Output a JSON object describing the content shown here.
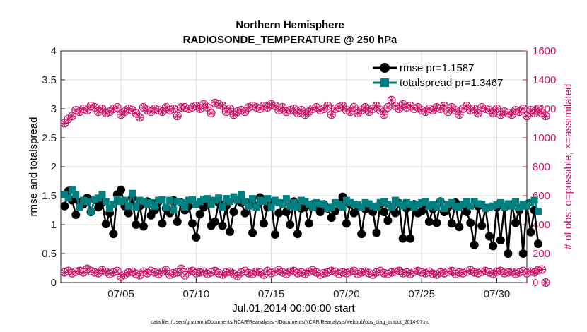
{
  "colors": {
    "rmse": "#000000",
    "spread": "#008080",
    "obs": "#cc1466",
    "grid": "#dddddd",
    "axis": "#222222"
  },
  "chart_data": {
    "type": "line",
    "title": "Northern Hemisphere",
    "subtitle": "RADIOSONDE_TEMPERATURE @ 250 hPa",
    "xlabel": "Jul.01,2014 00:00:00 start",
    "ylabel_left": "rmse and totalspread",
    "ylabel_right": "# of obs: o=possible; ×=assimilated",
    "xlim": [
      1,
      32
    ],
    "ylim_left": [
      0,
      4
    ],
    "ylim_right": [
      0,
      1600
    ],
    "xticks": [
      5,
      10,
      15,
      20,
      25,
      30
    ],
    "xtick_labels": [
      "07/05",
      "07/10",
      "07/15",
      "07/20",
      "07/25",
      "07/30"
    ],
    "yticks_left": [
      0,
      0.5,
      1,
      1.5,
      2,
      2.5,
      3,
      3.5,
      4
    ],
    "ytick_labels_left": [
      "0",
      "0.5",
      "1",
      "1.5",
      "2",
      "2.5",
      "3",
      "3.5",
      "4"
    ],
    "yticks_right": [
      0,
      200,
      400,
      600,
      800,
      1000,
      1200,
      1400,
      1600
    ],
    "ytick_labels_right": [
      "0",
      "200",
      "400",
      "600",
      "800",
      "1000",
      "1200",
      "1400",
      "1600"
    ],
    "legend": {
      "rmse": "rmse pr=1.1587",
      "spread": "totalspread pr=1.3467"
    },
    "footnote": "data file: /Users/gharamti/Documents/NCAR/Reanalysis/~/Documents/NCAR/Reanalysis/webpub/obs_diag_output_2014-07.nc",
    "x_start": 1.25,
    "x_step": 0.25,
    "series": [
      {
        "name": "rmse",
        "axis": "left",
        "values": [
          1.32,
          1.58,
          1.42,
          1.17,
          1.38,
          1.35,
          1.46,
          1.22,
          1.43,
          1.3,
          1.38,
          1.01,
          1.2,
          0.84,
          1.52,
          1.6,
          1.32,
          1.2,
          1.46,
          1.0,
          1.32,
          0.97,
          1.4,
          1.16,
          1.25,
          1.4,
          1.02,
          1.28,
          1.2,
          1.42,
          1.05,
          1.38,
          1.25,
          1.32,
          1.02,
          0.78,
          1.18,
          1.3,
          1.43,
          0.98,
          1.05,
          1.38,
          0.98,
          1.32,
          0.88,
          1.22,
          1.42,
          1.38,
          1.2,
          1.37,
          0.86,
          1.32,
          1.47,
          1.02,
          1.3,
          1.38,
          0.83,
          1.2,
          1.36,
          1.22,
          1.0,
          1.4,
          0.84,
          1.28,
          1.3,
          1.02,
          1.35,
          1.3,
          1.22,
          1.35,
          1.28,
          1.12,
          1.23,
          1.37,
          1.48,
          1.02,
          1.35,
          1.2,
          1.32,
          0.84,
          1.27,
          1.33,
          1.22,
          0.86,
          1.35,
          1.22,
          1.07,
          1.3,
          1.2,
          1.37,
          0.76,
          1.28,
          0.76,
          1.35,
          1.2,
          1.23,
          1.35,
          1.05,
          1.27,
          1.03,
          1.4,
          1.22,
          1.3,
          1.02,
          1.38,
          0.96,
          1.3,
          1.22,
          1.03,
          0.65,
          1.32,
          0.98,
          1.28,
          0.8,
          0.63,
          1.3,
          0.73,
          1.3,
          0.5,
          1.35,
          1.03,
          1.25,
          0.5,
          1.35,
          0.87,
          1.25,
          0.67
        ]
      },
      {
        "name": "totalspread",
        "axis": "left",
        "values": [
          1.52,
          1.46,
          1.6,
          1.52,
          1.3,
          1.42,
          1.4,
          1.22,
          1.44,
          1.46,
          1.52,
          1.4,
          1.28,
          1.35,
          1.44,
          1.4,
          1.42,
          1.32,
          1.54,
          1.3,
          1.42,
          1.4,
          1.35,
          1.38,
          1.32,
          1.42,
          1.43,
          1.3,
          1.42,
          1.25,
          1.4,
          1.38,
          1.3,
          1.42,
          1.43,
          1.35,
          1.4,
          1.44,
          1.45,
          1.35,
          1.42,
          1.46,
          1.3,
          1.45,
          1.4,
          1.48,
          1.42,
          1.52,
          1.4,
          1.32,
          1.45,
          1.3,
          1.42,
          1.4,
          1.45,
          1.3,
          1.42,
          1.38,
          1.35,
          1.45,
          1.32,
          1.38,
          1.3,
          1.42,
          1.4,
          1.35,
          1.3,
          1.38,
          1.36,
          1.35,
          1.28,
          1.3,
          1.38,
          1.35,
          1.3,
          1.42,
          1.38,
          1.35,
          1.34,
          1.3,
          1.38,
          1.36,
          1.32,
          1.3,
          1.38,
          1.4,
          1.35,
          1.3,
          1.42,
          1.37,
          1.32,
          1.38,
          1.35,
          1.3,
          1.35,
          1.38,
          1.4,
          1.32,
          1.35,
          1.3,
          1.4,
          1.28,
          1.35,
          1.38,
          1.32,
          1.3,
          1.35,
          1.4,
          1.32,
          1.4,
          1.36,
          1.35,
          1.28,
          1.3,
          1.32,
          1.34,
          1.38,
          1.3,
          1.36,
          1.32,
          1.4,
          1.3,
          1.35,
          1.32,
          1.38,
          1.42,
          1.23
        ]
      },
      {
        "name": "obs_possible",
        "axis": "right",
        "values": [
          1100,
          1130,
          1150,
          1190,
          1180,
          1200,
          1190,
          1220,
          1210,
          1180,
          1200,
          1170,
          1180,
          1200,
          1210,
          1160,
          1180,
          1200,
          1190,
          1170,
          1140,
          1210,
          1190,
          1180,
          1200,
          1190,
          1180,
          1210,
          1190,
          1200,
          1150,
          1210,
          1210,
          1200,
          1210,
          1220,
          1200,
          1230,
          1210,
          1170,
          1240,
          1230,
          1220,
          1180,
          1200,
          1160,
          1180,
          1190,
          1180,
          1210,
          1220,
          1210,
          1200,
          1220,
          1210,
          1230,
          1220,
          1190,
          1210,
          1180,
          1190,
          1200,
          1170,
          1190,
          1160,
          1180,
          1200,
          1210,
          1190,
          1200,
          1220,
          1160,
          1200,
          1210,
          1220,
          1190,
          1180,
          1210,
          1170,
          1190,
          1210,
          1180,
          1200,
          1220,
          1190,
          1160,
          1210,
          1260,
          1220,
          1200,
          1230,
          1210,
          1220,
          1200,
          1210,
          1190,
          1180,
          1200,
          1190,
          1210,
          1200,
          1220,
          1180,
          1210,
          1190,
          1160,
          1200,
          1220,
          1190,
          1200,
          1170,
          1210,
          1200,
          1190,
          1170,
          1200,
          1160,
          1180,
          1170,
          1160,
          1190,
          1180,
          1200,
          1150,
          1190,
          1170,
          1200,
          1170,
          1150
        ]
      },
      {
        "name": "obs_assimilated",
        "axis": "right",
        "values": [
          1100,
          1130,
          1150,
          1190,
          1180,
          1200,
          1190,
          1220,
          1210,
          1180,
          1200,
          1170,
          1180,
          1200,
          1210,
          1160,
          1180,
          1200,
          1190,
          1170,
          1140,
          1210,
          1190,
          1180,
          1200,
          1190,
          1180,
          1210,
          1190,
          1200,
          1150,
          1210,
          1210,
          1200,
          1210,
          1220,
          1200,
          1230,
          1210,
          1170,
          1240,
          1230,
          1220,
          1180,
          1200,
          1160,
          1180,
          1190,
          1180,
          1210,
          1220,
          1210,
          1200,
          1220,
          1210,
          1230,
          1220,
          1190,
          1210,
          1180,
          1190,
          1200,
          1170,
          1190,
          1160,
          1180,
          1200,
          1210,
          1190,
          1200,
          1220,
          1160,
          1200,
          1210,
          1220,
          1190,
          1180,
          1210,
          1170,
          1190,
          1210,
          1180,
          1200,
          1220,
          1190,
          1160,
          1210,
          1260,
          1220,
          1200,
          1230,
          1210,
          1220,
          1200,
          1210,
          1190,
          1180,
          1200,
          1190,
          1210,
          1200,
          1220,
          1180,
          1210,
          1190,
          1160,
          1200,
          1220,
          1190,
          1200,
          1170,
          1210,
          1200,
          1190,
          1170,
          1200,
          1160,
          1180,
          1170,
          1160,
          1190,
          1180,
          1200,
          1150,
          1190,
          1170,
          1200,
          1170,
          1150
        ]
      },
      {
        "name": "obs_low_possible",
        "axis": "right",
        "values": [
          70,
          80,
          65,
          75,
          80,
          70,
          95,
          80,
          70,
          65,
          85,
          75,
          60,
          70,
          80,
          40,
          55,
          70,
          75,
          60,
          50,
          75,
          65,
          80,
          70,
          60,
          75,
          85,
          55,
          65,
          70,
          95,
          50,
          75,
          80,
          65,
          70,
          75,
          60,
          70,
          80,
          65,
          55,
          70,
          75,
          60,
          45,
          70,
          80,
          65,
          60,
          75,
          70,
          55,
          80,
          65,
          75,
          85,
          70,
          60,
          75,
          80,
          65,
          70,
          60,
          75,
          85,
          70,
          55,
          65,
          70,
          80,
          75,
          60,
          70,
          65,
          75,
          80,
          60,
          70,
          75,
          65,
          55,
          70,
          80,
          65,
          60,
          70,
          75,
          80,
          65,
          70,
          60,
          75,
          80,
          70,
          65,
          75,
          60,
          55,
          70,
          65,
          75,
          80,
          60,
          70,
          65,
          75,
          85,
          70,
          65,
          75,
          80,
          70,
          60,
          75,
          80,
          65,
          70,
          75,
          60,
          70,
          80,
          65,
          75,
          70,
          85,
          90,
          0
        ]
      },
      {
        "name": "obs_low_assimilated",
        "axis": "right",
        "values": [
          70,
          80,
          65,
          75,
          80,
          70,
          95,
          80,
          70,
          65,
          85,
          75,
          60,
          70,
          80,
          40,
          55,
          70,
          75,
          60,
          50,
          75,
          65,
          80,
          70,
          60,
          75,
          85,
          55,
          65,
          70,
          95,
          50,
          75,
          80,
          65,
          70,
          75,
          60,
          70,
          80,
          65,
          55,
          70,
          75,
          60,
          45,
          70,
          80,
          65,
          60,
          75,
          70,
          55,
          80,
          65,
          75,
          85,
          70,
          60,
          75,
          80,
          65,
          70,
          60,
          75,
          85,
          70,
          55,
          65,
          70,
          80,
          75,
          60,
          70,
          65,
          75,
          80,
          60,
          70,
          75,
          65,
          55,
          70,
          80,
          65,
          60,
          70,
          75,
          80,
          65,
          70,
          60,
          75,
          80,
          70,
          65,
          75,
          60,
          55,
          70,
          65,
          75,
          80,
          60,
          70,
          65,
          75,
          85,
          70,
          65,
          75,
          80,
          70,
          60,
          75,
          80,
          65,
          70,
          75,
          60,
          70,
          80,
          65,
          75,
          70,
          85,
          90,
          0
        ]
      }
    ]
  }
}
